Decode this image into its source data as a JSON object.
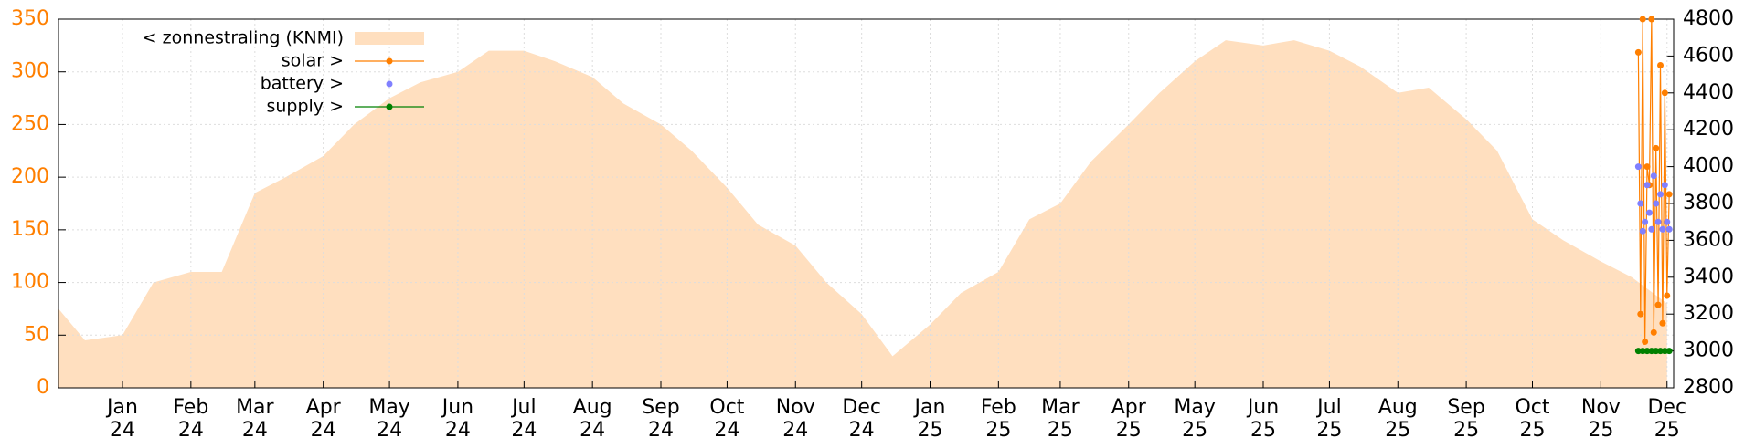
{
  "chart_data": {
    "type": "area_line",
    "legend": [
      "< zonnestraling (KNMI)",
      "solar >",
      "battery >",
      "supply >"
    ],
    "legend_position": "top-left",
    "grid": true,
    "xlim": [
      "2023-12-03",
      "2025-12-04"
    ],
    "xticks": [
      {
        "value": "2024-01-01",
        "label": "Jan 24"
      },
      {
        "value": "2024-02-01",
        "label": "Feb 24"
      },
      {
        "value": "2024-03-01",
        "label": "Mar 24"
      },
      {
        "value": "2024-04-01",
        "label": "Apr 24"
      },
      {
        "value": "2024-05-01",
        "label": "May 24"
      },
      {
        "value": "2024-06-01",
        "label": "Jun 24"
      },
      {
        "value": "2024-07-01",
        "label": "Jul 24"
      },
      {
        "value": "2024-08-01",
        "label": "Aug 24"
      },
      {
        "value": "2024-09-01",
        "label": "Sep 24"
      },
      {
        "value": "2024-10-01",
        "label": "Oct 24"
      },
      {
        "value": "2024-11-01",
        "label": "Nov 24"
      },
      {
        "value": "2024-12-01",
        "label": "Dec 24"
      },
      {
        "value": "2025-01-01",
        "label": "Jan 25"
      },
      {
        "value": "2025-02-01",
        "label": "Feb 25"
      },
      {
        "value": "2025-03-01",
        "label": "Mar 25"
      },
      {
        "value": "2025-04-01",
        "label": "Apr 25"
      },
      {
        "value": "2025-05-01",
        "label": "May 25"
      },
      {
        "value": "2025-06-01",
        "label": "Jun 25"
      },
      {
        "value": "2025-07-01",
        "label": "Jul 25"
      },
      {
        "value": "2025-08-01",
        "label": "Aug 25"
      },
      {
        "value": "2025-09-01",
        "label": "Sep 25"
      },
      {
        "value": "2025-10-01",
        "label": "Oct 25"
      },
      {
        "value": "2025-11-01",
        "label": "Nov 25"
      },
      {
        "value": "2025-12-01",
        "label": "Dec 25"
      }
    ],
    "ylim": [
      0,
      350
    ],
    "yticks": [
      0,
      50,
      100,
      150,
      200,
      250,
      300,
      350
    ],
    "y2lim": [
      2800,
      4800
    ],
    "y2ticks": [
      2800,
      3000,
      3200,
      3400,
      3600,
      3800,
      4000,
      4200,
      4400,
      4600,
      4800
    ],
    "area": {
      "name": "< zonnestraling (KNMI)",
      "color": "#ffdfbf",
      "x": [
        "2023-12-03",
        "2023-12-15",
        "2024-01-01",
        "2024-01-15",
        "2024-02-01",
        "2024-02-15",
        "2024-03-01",
        "2024-03-15",
        "2024-04-01",
        "2024-04-15",
        "2024-05-01",
        "2024-05-15",
        "2024-06-01",
        "2024-06-15",
        "2024-07-01",
        "2024-07-15",
        "2024-08-01",
        "2024-08-15",
        "2024-09-01",
        "2024-09-15",
        "2024-10-01",
        "2024-10-15",
        "2024-11-01",
        "2024-11-15",
        "2024-12-01",
        "2024-12-15",
        "2025-01-01",
        "2025-01-15",
        "2025-02-01",
        "2025-02-15",
        "2025-03-01",
        "2025-03-15",
        "2025-04-01",
        "2025-04-15",
        "2025-05-01",
        "2025-05-15",
        "2025-06-01",
        "2025-06-15",
        "2025-07-01",
        "2025-07-15",
        "2025-08-01",
        "2025-08-15",
        "2025-09-01",
        "2025-09-15",
        "2025-10-01",
        "2025-10-15",
        "2025-11-01",
        "2025-11-15",
        "2025-12-01"
      ],
      "values": [
        75,
        45,
        50,
        100,
        110,
        110,
        185,
        200,
        220,
        250,
        275,
        290,
        300,
        320,
        320,
        310,
        295,
        270,
        250,
        225,
        190,
        155,
        135,
        100,
        70,
        30,
        60,
        90,
        110,
        160,
        175,
        215,
        250,
        280,
        310,
        330,
        325,
        330,
        320,
        305,
        280,
        285,
        255,
        225,
        160,
        140,
        120,
        105,
        80
      ]
    },
    "series": [
      {
        "name": "solar >",
        "color": "#ff7f00",
        "axis": "y2",
        "x": [
          "2025-11-18",
          "2025-11-19",
          "2025-11-20",
          "2025-11-21",
          "2025-11-22",
          "2025-11-23",
          "2025-11-24",
          "2025-11-25",
          "2025-11-26",
          "2025-11-27",
          "2025-11-28",
          "2025-11-29",
          "2025-11-30",
          "2025-12-01",
          "2025-12-02"
        ],
        "values": [
          4620,
          3200,
          4800,
          3050,
          4000,
          3900,
          4800,
          3100,
          4100,
          3250,
          4550,
          3150,
          4400,
          3300,
          3850
        ]
      },
      {
        "name": "battery >",
        "color": "#8080ff",
        "axis": "y2",
        "x": [
          "2025-11-18",
          "2025-11-19",
          "2025-11-20",
          "2025-11-21",
          "2025-11-22",
          "2025-11-23",
          "2025-11-24",
          "2025-11-25",
          "2025-11-26",
          "2025-11-27",
          "2025-11-28",
          "2025-11-29",
          "2025-11-30",
          "2025-12-01",
          "2025-12-02"
        ],
        "values": [
          4000,
          3800,
          3650,
          3700,
          3900,
          3750,
          3660,
          3950,
          3800,
          3700,
          3850,
          3660,
          3900,
          3700,
          3660
        ]
      },
      {
        "name": "supply >",
        "color": "#008000",
        "axis": "y2",
        "x": [
          "2025-11-18",
          "2025-11-20",
          "2025-11-22",
          "2025-11-24",
          "2025-11-26",
          "2025-11-28",
          "2025-11-30",
          "2025-12-02"
        ],
        "values": [
          3000,
          3000,
          3000,
          3000,
          3000,
          3000,
          3000,
          3000
        ]
      }
    ]
  }
}
